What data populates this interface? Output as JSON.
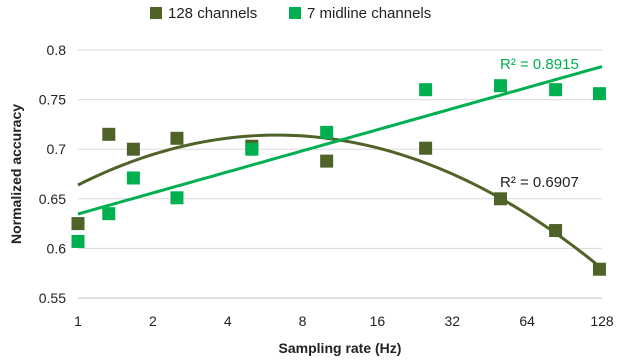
{
  "chart_data": {
    "type": "scatter",
    "title": "",
    "xlabel": "Sampling rate (Hz)",
    "ylabel": "Normalized accuracy",
    "x_scale": "log2",
    "xlim": [
      1,
      128
    ],
    "ylim": [
      0.55,
      0.8
    ],
    "x_ticks": [
      1,
      2,
      4,
      8,
      16,
      32,
      64,
      128
    ],
    "x_tick_labels": [
      "1",
      "2",
      "4",
      "8",
      "16",
      "32",
      "64",
      "128"
    ],
    "y_ticks": [
      0.55,
      0.6,
      0.65,
      0.7,
      0.75,
      0.8
    ],
    "y_tick_labels": [
      "0.55",
      "0.6",
      "0.65",
      "0.7",
      "0.75",
      "0.8"
    ],
    "grid": "horizontal",
    "legend_position": "top-center",
    "series": [
      {
        "name": "128 channels",
        "color": "#4f6228",
        "marker": "square",
        "x": [
          1,
          1.33,
          1.67,
          2.5,
          5,
          10,
          25,
          50,
          83.3,
          125
        ],
        "y": [
          0.625,
          0.715,
          0.7,
          0.711,
          0.703,
          0.688,
          0.701,
          0.65,
          0.618,
          0.579
        ],
        "trendline": {
          "type": "polynomial",
          "r2_label": "R² = 0.6907",
          "color": "#4f6228"
        }
      },
      {
        "name": "7 midline channels",
        "color": "#00b050",
        "marker": "square",
        "x": [
          1,
          1.33,
          1.67,
          2.5,
          5,
          10,
          25,
          50,
          83.3,
          125
        ],
        "y": [
          0.607,
          0.635,
          0.671,
          0.651,
          0.7,
          0.717,
          0.76,
          0.764,
          0.76,
          0.756
        ],
        "trendline": {
          "type": "linear",
          "r2_label": "R² = 0.8915",
          "color": "#00b050"
        }
      }
    ]
  }
}
